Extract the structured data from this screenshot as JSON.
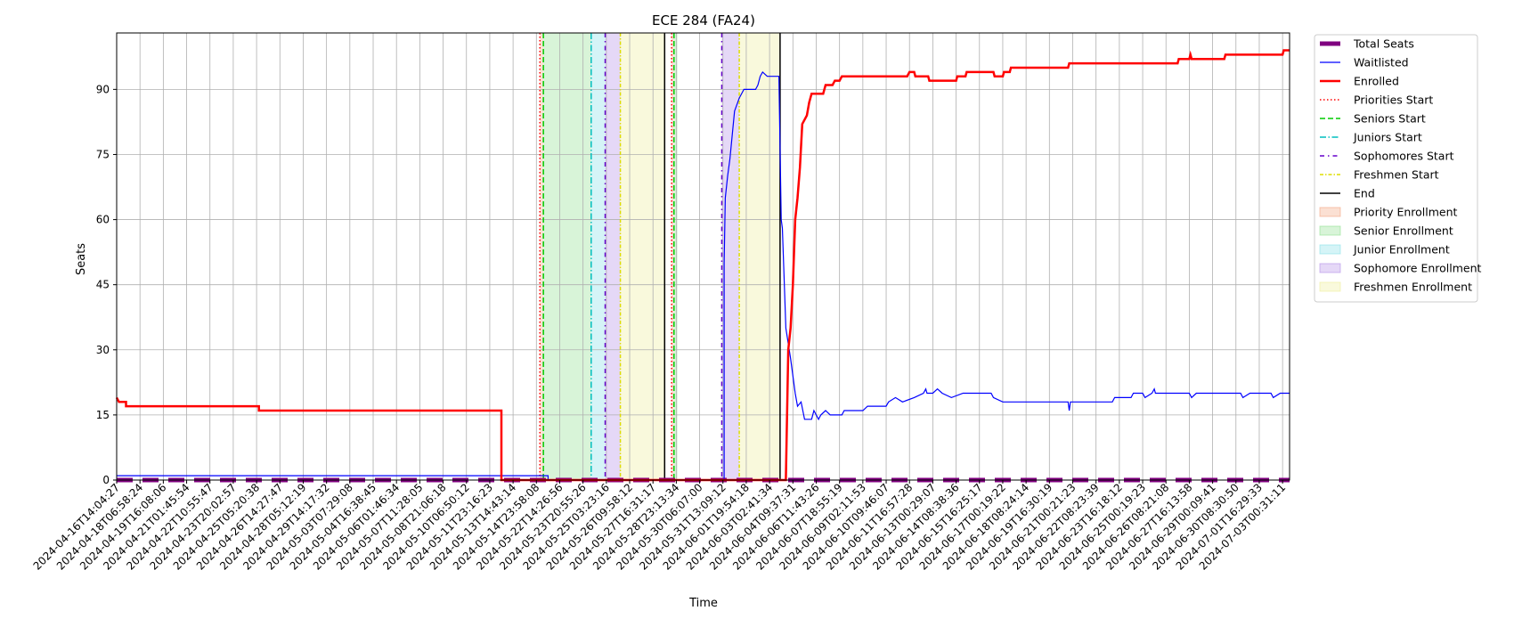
{
  "chart_data": {
    "type": "line",
    "title": "ECE 284 (FA24)",
    "xlabel": "Time",
    "ylabel": "Seats",
    "ylim": [
      0,
      103
    ],
    "yticks": [
      0,
      15,
      30,
      45,
      60,
      75,
      90
    ],
    "grid": true,
    "legend_position": "outside-right-top",
    "xticks": [
      "2024-04-16T14:04:27",
      "2024-04-18T06:58:24",
      "2024-04-19T16:08:06",
      "2024-04-21T01:45:54",
      "2024-04-22T10:55:47",
      "2024-04-23T20:02:57",
      "2024-04-25T05:20:38",
      "2024-04-26T14:27:47",
      "2024-04-28T05:12:19",
      "2024-04-29T14:17:32",
      "2024-05-03T07:29:08",
      "2024-05-04T16:38:45",
      "2024-05-06T01:46:34",
      "2024-05-07T11:28:05",
      "2024-05-08T21:06:18",
      "2024-05-10T06:50:12",
      "2024-05-11T23:16:23",
      "2024-05-13T14:43:14",
      "2024-05-14T23:58:08",
      "2024-05-22T14:26:56",
      "2024-05-23T20:55:26",
      "2024-05-25T03:23:16",
      "2024-05-26T09:58:12",
      "2024-05-27T16:31:17",
      "2024-05-28T23:13:34",
      "2024-05-30T06:07:00",
      "2024-05-31T13:09:12",
      "2024-06-01T19:54:18",
      "2024-06-03T02:41:34",
      "2024-06-04T09:37:31",
      "2024-06-06T11:43:26",
      "2024-06-07T18:55:19",
      "2024-06-09T02:11:53",
      "2024-06-10T09:46:07",
      "2024-06-11T16:57:28",
      "2024-06-13T00:29:07",
      "2024-06-14T08:38:36",
      "2024-06-15T16:25:17",
      "2024-06-17T00:19:22",
      "2024-06-18T08:24:14",
      "2024-06-19T16:30:19",
      "2024-06-21T00:21:23",
      "2024-06-22T08:23:39",
      "2024-06-23T16:18:12",
      "2024-06-25T00:19:23",
      "2024-06-26T08:21:08",
      "2024-06-27T16:13:58",
      "2024-06-29T00:09:41",
      "2024-06-30T08:30:50",
      "2024-07-01T16:29:33",
      "2024-07-03T00:31:11"
    ],
    "series": [
      {
        "name": "Total Seats",
        "color": "#800080",
        "style": "dashed-thick",
        "points": [
          [
            0,
            0
          ],
          [
            50.3,
            0
          ]
        ]
      },
      {
        "name": "Waitlisted",
        "color": "#0000ff",
        "style": "solid-thin",
        "points": [
          [
            0,
            1
          ],
          [
            18.5,
            1
          ],
          [
            18.5,
            0
          ],
          [
            23.7,
            0
          ],
          [
            23.7,
            0
          ],
          [
            26.0,
            0
          ],
          [
            26.0,
            0
          ],
          [
            23.7,
            0
          ],
          [
            23.8,
            0
          ],
          [
            25.0,
            0
          ],
          [
            25.0,
            0
          ],
          [
            26.0,
            0
          ],
          [
            26.05,
            0
          ],
          [
            26.05,
            50
          ],
          [
            26.1,
            65
          ],
          [
            26.2,
            70
          ],
          [
            26.3,
            74
          ],
          [
            26.5,
            85
          ],
          [
            26.7,
            88
          ],
          [
            26.9,
            90
          ],
          [
            27.4,
            90
          ],
          [
            27.5,
            91
          ],
          [
            27.6,
            93
          ],
          [
            27.7,
            94
          ],
          [
            27.9,
            93
          ],
          [
            28.4,
            93
          ],
          [
            28.5,
            60
          ],
          [
            28.55,
            58
          ],
          [
            28.7,
            35
          ],
          [
            28.9,
            28
          ],
          [
            29.1,
            20
          ],
          [
            29.2,
            17
          ],
          [
            29.35,
            18
          ],
          [
            29.5,
            14
          ],
          [
            29.8,
            14
          ],
          [
            29.9,
            16
          ],
          [
            30.0,
            15
          ],
          [
            30.1,
            14
          ],
          [
            30.2,
            15
          ],
          [
            30.4,
            16
          ],
          [
            30.6,
            15
          ],
          [
            31.1,
            15
          ],
          [
            31.2,
            16
          ],
          [
            32.0,
            16
          ],
          [
            32.2,
            17
          ],
          [
            33.0,
            17
          ],
          [
            33.1,
            18
          ],
          [
            33.4,
            19
          ],
          [
            33.7,
            18
          ],
          [
            34.2,
            19
          ],
          [
            34.6,
            20
          ],
          [
            34.7,
            21
          ],
          [
            34.75,
            20
          ],
          [
            35.0,
            20
          ],
          [
            35.2,
            21
          ],
          [
            35.4,
            20
          ],
          [
            35.8,
            19
          ],
          [
            36.3,
            20
          ],
          [
            37.5,
            20
          ],
          [
            37.6,
            19
          ],
          [
            38.0,
            18
          ],
          [
            40.8,
            18
          ],
          [
            40.85,
            16
          ],
          [
            40.9,
            18
          ],
          [
            42.7,
            18
          ],
          [
            42.8,
            19
          ],
          [
            43.5,
            19
          ],
          [
            43.6,
            20
          ],
          [
            44.0,
            20
          ],
          [
            44.1,
            19
          ],
          [
            44.4,
            20
          ],
          [
            44.5,
            21
          ],
          [
            44.55,
            20
          ],
          [
            46.0,
            20
          ],
          [
            46.1,
            19
          ],
          [
            46.3,
            20
          ],
          [
            48.2,
            20
          ],
          [
            48.3,
            19
          ],
          [
            48.6,
            20
          ],
          [
            49.5,
            20
          ],
          [
            49.6,
            19
          ],
          [
            49.9,
            20
          ],
          [
            50.3,
            20
          ]
        ]
      },
      {
        "name": "Enrolled",
        "color": "#ff0000",
        "style": "solid-thick",
        "points": [
          [
            0,
            19
          ],
          [
            0.1,
            18
          ],
          [
            0.4,
            18
          ],
          [
            0.4,
            17
          ],
          [
            6.1,
            17
          ],
          [
            6.1,
            16
          ],
          [
            16.5,
            16
          ],
          [
            16.5,
            0
          ],
          [
            26.0,
            0
          ],
          [
            26.0,
            0
          ],
          [
            28.7,
            0
          ],
          [
            28.8,
            30
          ],
          [
            28.9,
            35
          ],
          [
            29.0,
            45
          ],
          [
            29.1,
            60
          ],
          [
            29.2,
            65
          ],
          [
            29.3,
            72
          ],
          [
            29.4,
            82
          ],
          [
            29.6,
            84
          ],
          [
            29.7,
            87
          ],
          [
            29.8,
            89
          ],
          [
            30.3,
            89
          ],
          [
            30.4,
            91
          ],
          [
            30.7,
            91
          ],
          [
            30.8,
            92
          ],
          [
            31.0,
            92
          ],
          [
            31.1,
            93
          ],
          [
            31.5,
            93
          ],
          [
            33.9,
            93
          ],
          [
            34.0,
            94
          ],
          [
            34.2,
            94
          ],
          [
            34.25,
            93
          ],
          [
            34.8,
            93
          ],
          [
            34.85,
            92
          ],
          [
            36.0,
            92
          ],
          [
            36.05,
            93
          ],
          [
            36.4,
            93
          ],
          [
            36.45,
            94
          ],
          [
            37.6,
            94
          ],
          [
            37.65,
            93
          ],
          [
            38.0,
            93
          ],
          [
            38.05,
            94
          ],
          [
            38.3,
            94
          ],
          [
            38.35,
            95
          ],
          [
            40.8,
            95
          ],
          [
            40.85,
            96
          ],
          [
            45.5,
            96
          ],
          [
            45.55,
            97
          ],
          [
            46.0,
            97
          ],
          [
            46.05,
            98
          ],
          [
            46.1,
            97
          ],
          [
            47.5,
            97
          ],
          [
            47.55,
            98
          ],
          [
            50.0,
            98
          ],
          [
            50.05,
            99
          ],
          [
            50.3,
            99
          ]
        ]
      }
    ],
    "event_lines": [
      {
        "name": "Priorities Start",
        "x": 18.15,
        "color": "#ff0000",
        "dash": "1.5,2.5"
      },
      {
        "name": "Seniors Start",
        "x": 18.3,
        "color": "#00cc00",
        "dash": "6,3"
      },
      {
        "name": "Juniors Start",
        "x": 20.35,
        "color": "#00bfbf",
        "dash": "7,2.5,1.5,2.5"
      },
      {
        "name": "Sophomores Start",
        "x": 20.95,
        "color": "#6600cc",
        "dash": "5,4,1.5,4"
      },
      {
        "name": "Freshmen Start",
        "x": 21.6,
        "color": "#dddd00",
        "dash": "4,2,1.5,2"
      },
      {
        "name": "End",
        "x": 23.5,
        "color": "#000000",
        "dash": ""
      },
      {
        "name": "Priorities Start",
        "x": 23.8,
        "color": "#ff0000",
        "dash": "1.5,2.5"
      },
      {
        "name": "Seniors Start",
        "x": 23.9,
        "color": "#00cc00",
        "dash": "6,3"
      },
      {
        "name": "Sophomores Start",
        "x": 25.95,
        "color": "#6600cc",
        "dash": "5,4,1.5,4"
      },
      {
        "name": "Freshmen Start",
        "x": 26.7,
        "color": "#dddd00",
        "dash": "4,2,1.5,2"
      },
      {
        "name": "End",
        "x": 28.45,
        "color": "#000000",
        "dash": ""
      }
    ],
    "spans": [
      {
        "name": "Priority Enrollment",
        "x0": 18.15,
        "x1": 18.3,
        "color": "#f4a582"
      },
      {
        "name": "Senior Enrollment",
        "x0": 18.3,
        "x1": 20.35,
        "color": "#8fe08f"
      },
      {
        "name": "Junior Enrollment",
        "x0": 20.35,
        "x1": 20.95,
        "color": "#87e0e8"
      },
      {
        "name": "Sophomore Enrollment",
        "x0": 20.95,
        "x1": 21.6,
        "color": "#b48ee8"
      },
      {
        "name": "Freshmen Enrollment",
        "x0": 21.6,
        "x1": 23.5,
        "color": "#eeee9a"
      },
      {
        "name": "Priority Enrollment",
        "x0": 23.8,
        "x1": 23.9,
        "color": "#f4a582"
      },
      {
        "name": "Senior Enrollment",
        "x0": 23.9,
        "x1": 24.05,
        "color": "#8fe08f"
      },
      {
        "name": "Sophomore Enrollment",
        "x0": 25.95,
        "x1": 26.7,
        "color": "#b48ee8"
      },
      {
        "name": "Freshmen Enrollment",
        "x0": 26.7,
        "x1": 28.45,
        "color": "#eeee9a"
      }
    ],
    "legend": [
      {
        "label": "Total Seats",
        "kind": "line",
        "color": "#800080",
        "dash": "",
        "width": 5
      },
      {
        "label": "Waitlisted",
        "kind": "line",
        "color": "#0000ff",
        "dash": "",
        "width": 1.2
      },
      {
        "label": "Enrolled",
        "kind": "line",
        "color": "#ff0000",
        "dash": "",
        "width": 2.5
      },
      {
        "label": "Priorities Start",
        "kind": "line",
        "color": "#ff0000",
        "dash": "1.5,2.5",
        "width": 1.5
      },
      {
        "label": "Seniors Start",
        "kind": "line",
        "color": "#00cc00",
        "dash": "6,3",
        "width": 1.5
      },
      {
        "label": "Juniors Start",
        "kind": "line",
        "color": "#00bfbf",
        "dash": "7,2.5,1.5,2.5",
        "width": 1.5
      },
      {
        "label": "Sophomores Start",
        "kind": "line",
        "color": "#6600cc",
        "dash": "5,4,1.5,4",
        "width": 1.5
      },
      {
        "label": "Freshmen Start",
        "kind": "line",
        "color": "#dddd00",
        "dash": "4,2,1.5,2",
        "width": 1.5
      },
      {
        "label": "End",
        "kind": "line",
        "color": "#000000",
        "dash": "",
        "width": 1.5
      },
      {
        "label": "Priority Enrollment",
        "kind": "patch",
        "color": "#f4a582"
      },
      {
        "label": "Senior Enrollment",
        "kind": "patch",
        "color": "#8fe08f"
      },
      {
        "label": "Junior Enrollment",
        "kind": "patch",
        "color": "#87e0e8"
      },
      {
        "label": "Sophomore Enrollment",
        "kind": "patch",
        "color": "#b48ee8"
      },
      {
        "label": "Freshmen Enrollment",
        "kind": "patch",
        "color": "#eeee9a"
      }
    ]
  }
}
